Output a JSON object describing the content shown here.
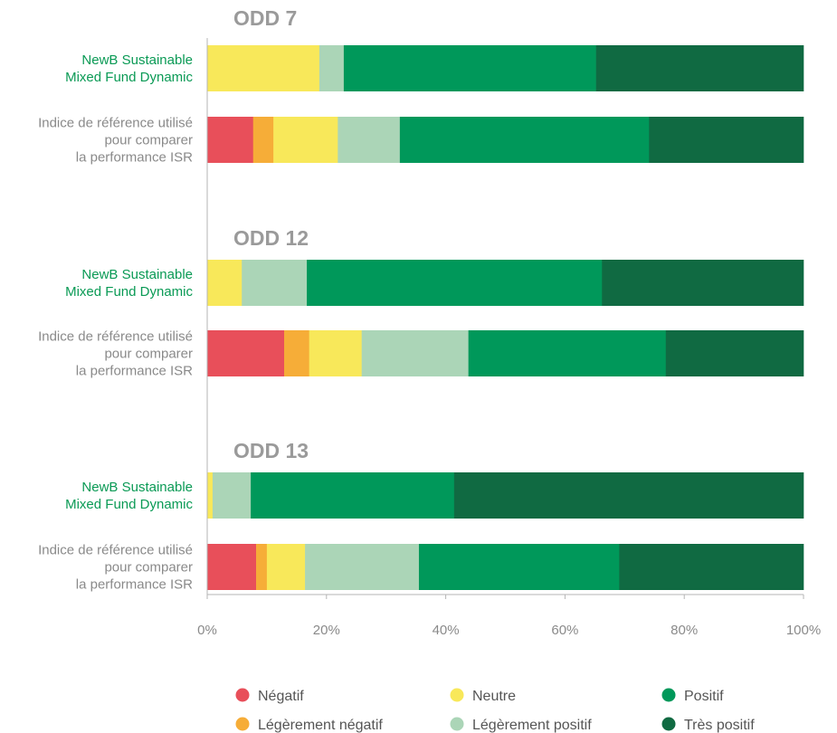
{
  "chart_data": {
    "type": "bar",
    "orientation": "horizontal",
    "stacked": true,
    "xlim": [
      0,
      100
    ],
    "x_ticks": [
      "0%",
      "20%",
      "40%",
      "60%",
      "80%",
      "100%"
    ],
    "categories_order": [
      "Négatif",
      "Légèrement négatif",
      "Neutre",
      "Légèrement positif",
      "Positif",
      "Très positif"
    ],
    "colors": {
      "Négatif": "#e84f5a",
      "Légèrement négatif": "#f6ad38",
      "Neutre": "#f8e85a",
      "Légèrement positif": "#abd5b7",
      "Positif": "#00985a",
      "Très positif": "#106a42"
    },
    "groups": [
      {
        "title": "ODD 7",
        "rows": [
          {
            "label_lines": [
              "NewB Sustainable",
              "Mixed Fund Dynamic"
            ],
            "kind": "fund",
            "values": [
              0,
              0,
              18.8,
              4.1,
              42.3,
              34.8
            ]
          },
          {
            "label_lines": [
              "Indice de référence utilisé",
              "pour comparer",
              "la performance ISR"
            ],
            "kind": "ref",
            "values": [
              7.7,
              3.4,
              10.8,
              10.4,
              41.8,
              25.9
            ]
          }
        ]
      },
      {
        "title": "ODD 12",
        "rows": [
          {
            "label_lines": [
              "NewB Sustainable",
              "Mixed Fund Dynamic"
            ],
            "kind": "fund",
            "values": [
              0,
              0,
              5.8,
              10.9,
              49.5,
              33.8
            ]
          },
          {
            "label_lines": [
              "Indice de référence utilisé",
              "pour comparer",
              "la performance ISR"
            ],
            "kind": "ref",
            "values": [
              12.9,
              4.2,
              8.8,
              17.9,
              33.1,
              23.1
            ]
          }
        ]
      },
      {
        "title": "ODD 13",
        "rows": [
          {
            "label_lines": [
              "NewB Sustainable",
              "Mixed Fund Dynamic"
            ],
            "kind": "fund",
            "values": [
              0,
              0,
              0.9,
              6.4,
              34.1,
              58.6
            ]
          },
          {
            "label_lines": [
              "Indice de référence utilisé",
              "pour comparer",
              "la performance ISR"
            ],
            "kind": "ref",
            "values": [
              8.2,
              1.8,
              6.4,
              19.1,
              33.6,
              30.9
            ]
          }
        ]
      }
    ],
    "legend": {
      "placement": "bottom",
      "columns": [
        [
          "Négatif",
          "Légèrement négatif"
        ],
        [
          "Neutre",
          "Légèrement positif"
        ],
        [
          "Positif",
          "Très positif"
        ]
      ]
    }
  }
}
